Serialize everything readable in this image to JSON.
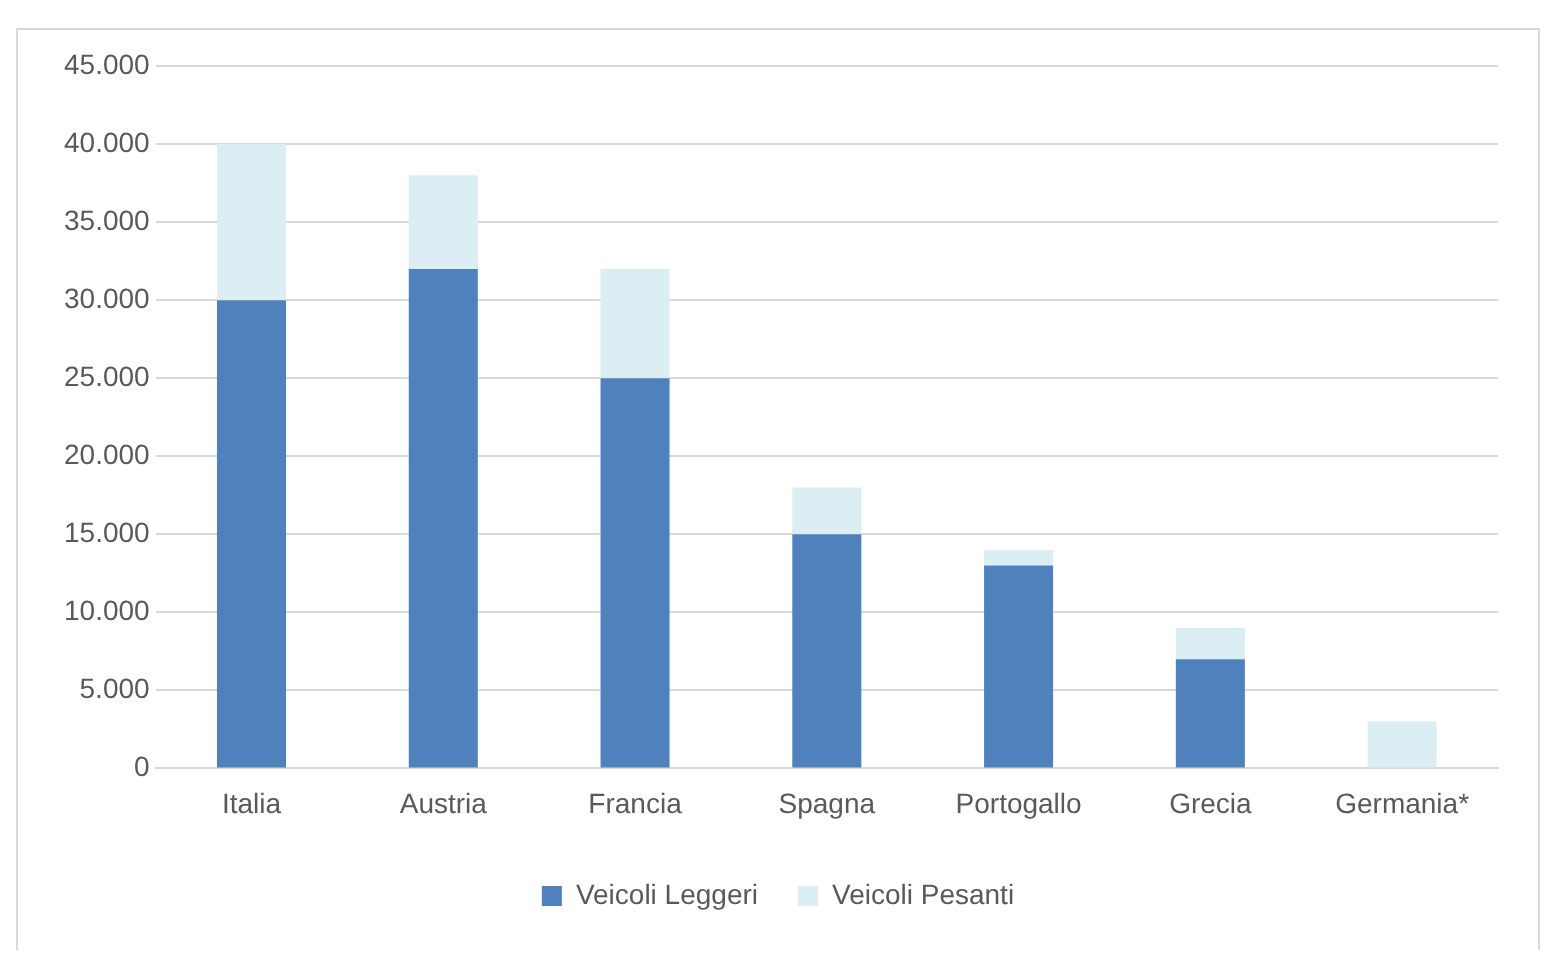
{
  "chart_data": {
    "type": "bar",
    "stacked": true,
    "categories": [
      "Italia",
      "Austria",
      "Francia",
      "Spagna",
      "Portogallo",
      "Grecia",
      "Germania*"
    ],
    "series": [
      {
        "name": "Veicoli Leggeri",
        "color": "#4f81bd",
        "values": [
          30000,
          32000,
          25000,
          15000,
          13000,
          7000,
          0
        ]
      },
      {
        "name": "Veicoli Pesanti",
        "color": "#dbeef4",
        "values": [
          10000,
          6000,
          7000,
          3000,
          1000,
          2000,
          3000
        ]
      }
    ],
    "ylim": [
      0,
      45000
    ],
    "yticks": [
      0,
      {
        "value": 5000,
        "label": "5.000"
      },
      {
        "value": 10000,
        "label": "10.000"
      },
      {
        "value": 15000,
        "label": "15.000"
      },
      {
        "value": 20000,
        "label": "20.000"
      },
      {
        "value": 25000,
        "label": "25.000"
      },
      {
        "value": 30000,
        "label": "30.000"
      },
      {
        "value": 35000,
        "label": "35.000"
      },
      {
        "value": 40000,
        "label": "40.000"
      },
      {
        "value": 45000,
        "label": "45.000"
      }
    ],
    "grid": "y",
    "legend": "bottom"
  }
}
